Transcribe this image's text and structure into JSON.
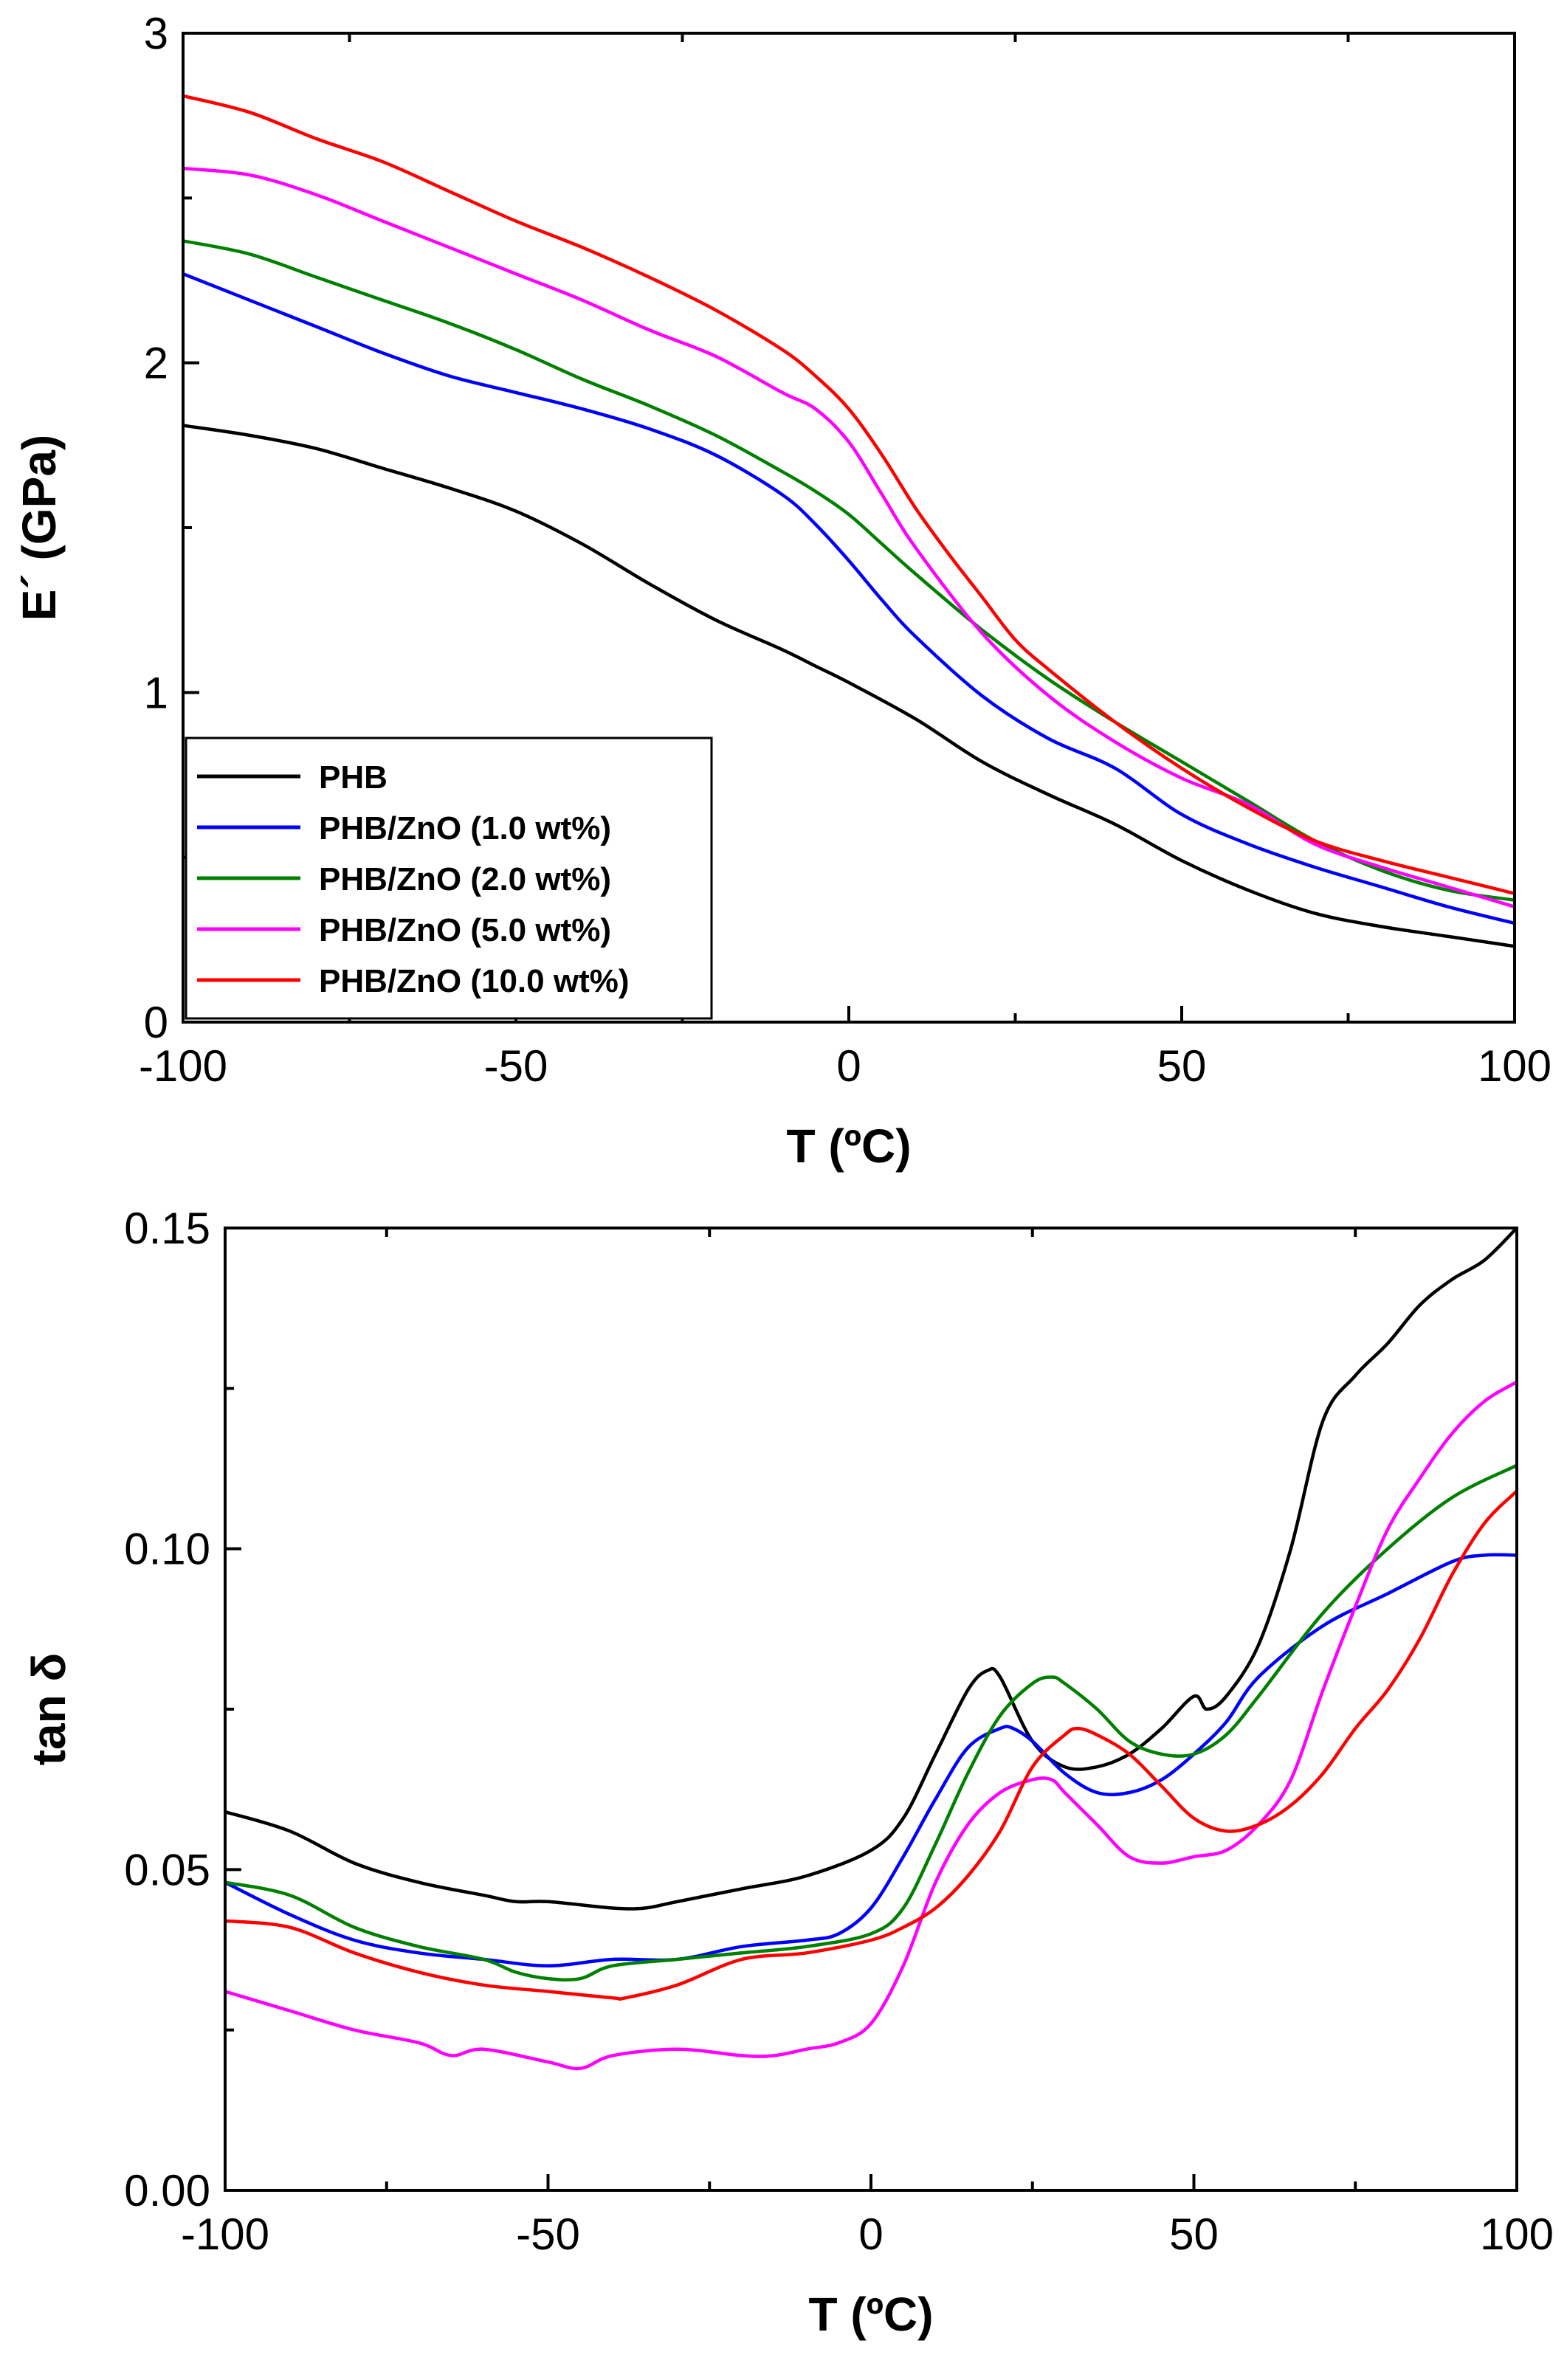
{
  "chart_data": [
    {
      "type": "line",
      "title": "",
      "xlabel": "T (ºC)",
      "ylabel": "E´ (GPa)",
      "xlim": [
        -100,
        100
      ],
      "ylim": [
        0,
        3
      ],
      "xticks": [
        -100,
        -50,
        0,
        50,
        100
      ],
      "xtick_labels": [
        "-100",
        "-50",
        "0",
        "50",
        "100"
      ],
      "yticks": [
        0,
        1,
        2,
        3
      ],
      "ytick_labels": [
        "0",
        "1",
        "2",
        "3"
      ],
      "grid": false,
      "legend_position": "bottom-left",
      "series": [
        {
          "name": "PHB",
          "color": "#000000",
          "x": [
            -100,
            -90,
            -80,
            -70,
            -60,
            -50,
            -40,
            -30,
            -20,
            -10,
            -5,
            0,
            10,
            20,
            30,
            40,
            50,
            60,
            70,
            80,
            90,
            100
          ],
          "y": [
            1.81,
            1.78,
            1.74,
            1.68,
            1.62,
            1.55,
            1.45,
            1.33,
            1.22,
            1.13,
            1.08,
            1.03,
            0.92,
            0.79,
            0.69,
            0.6,
            0.49,
            0.4,
            0.33,
            0.29,
            0.26,
            0.23
          ]
        },
        {
          "name": "PHB/ZnO (1.0 wt%)",
          "color": "#0000ff",
          "x": [
            -100,
            -90,
            -80,
            -70,
            -60,
            -50,
            -40,
            -30,
            -20,
            -10,
            -5,
            0,
            5,
            10,
            20,
            30,
            40,
            50,
            60,
            70,
            80,
            90,
            100
          ],
          "y": [
            2.27,
            2.19,
            2.11,
            2.03,
            1.96,
            1.91,
            1.86,
            1.8,
            1.72,
            1.6,
            1.51,
            1.4,
            1.28,
            1.17,
            0.99,
            0.86,
            0.77,
            0.63,
            0.54,
            0.47,
            0.41,
            0.35,
            0.3
          ]
        },
        {
          "name": "PHB/ZnO (2.0 wt%)",
          "color": "#008000",
          "x": [
            -100,
            -90,
            -80,
            -70,
            -60,
            -50,
            -40,
            -30,
            -20,
            -10,
            -5,
            0,
            5,
            10,
            20,
            30,
            40,
            50,
            60,
            70,
            80,
            90,
            100
          ],
          "y": [
            2.37,
            2.33,
            2.26,
            2.19,
            2.12,
            2.04,
            1.95,
            1.87,
            1.78,
            1.67,
            1.61,
            1.54,
            1.45,
            1.36,
            1.19,
            1.04,
            0.91,
            0.79,
            0.67,
            0.55,
            0.46,
            0.4,
            0.37
          ]
        },
        {
          "name": "PHB/ZnO (5.0 wt%)",
          "color": "#ff00ff",
          "x": [
            -100,
            -90,
            -80,
            -70,
            -60,
            -50,
            -40,
            -30,
            -20,
            -10,
            -5,
            0,
            5,
            10,
            20,
            30,
            40,
            50,
            60,
            70,
            80,
            90,
            100
          ],
          "y": [
            2.59,
            2.57,
            2.51,
            2.43,
            2.35,
            2.27,
            2.19,
            2.1,
            2.02,
            1.91,
            1.86,
            1.76,
            1.6,
            1.44,
            1.18,
            0.99,
            0.85,
            0.74,
            0.66,
            0.54,
            0.47,
            0.41,
            0.35
          ]
        },
        {
          "name": "PHB/ZnO (10.0 wt%)",
          "color": "#ff0000",
          "x": [
            -100,
            -90,
            -80,
            -70,
            -60,
            -50,
            -40,
            -30,
            -20,
            -10,
            -5,
            0,
            5,
            10,
            15,
            20,
            25,
            30,
            40,
            50,
            60,
            70,
            80,
            90,
            100
          ],
          "y": [
            2.81,
            2.76,
            2.68,
            2.61,
            2.52,
            2.43,
            2.35,
            2.26,
            2.16,
            2.04,
            1.96,
            1.86,
            1.72,
            1.56,
            1.42,
            1.29,
            1.16,
            1.07,
            0.91,
            0.77,
            0.65,
            0.55,
            0.49,
            0.44,
            0.39
          ]
        }
      ],
      "legend": {
        "entries": [
          "PHB",
          "PHB/ZnO (1.0 wt%)",
          "PHB/ZnO (2.0 wt%)",
          "PHB/ZnO (5.0 wt%)",
          "PHB/ZnO (10.0 wt%)"
        ]
      }
    },
    {
      "type": "line",
      "title": "",
      "xlabel": "T (ºC)",
      "ylabel": "tan δ",
      "xlim": [
        -100,
        100
      ],
      "ylim": [
        0,
        0.15
      ],
      "xticks": [
        -100,
        -50,
        0,
        50,
        100
      ],
      "xtick_labels": [
        "-100",
        "-50",
        "0",
        "50",
        "100"
      ],
      "yticks": [
        0,
        0.05,
        0.1,
        0.15
      ],
      "ytick_labels": [
        "0.00",
        "0.05",
        "0.10",
        "0.15"
      ],
      "grid": false,
      "series": [
        {
          "name": "PHB",
          "color": "#000000",
          "x": [
            -100,
            -90,
            -80,
            -70,
            -60,
            -55,
            -50,
            -40,
            -35,
            -30,
            -20,
            -10,
            0,
            5,
            10,
            15,
            18,
            20,
            25,
            30,
            35,
            40,
            45,
            50,
            52,
            55,
            60,
            65,
            70,
            75,
            80,
            85,
            90,
            95,
            100
          ],
          "y": [
            0.059,
            0.056,
            0.051,
            0.048,
            0.046,
            0.045,
            0.045,
            0.044,
            0.044,
            0.045,
            0.047,
            0.049,
            0.053,
            0.058,
            0.068,
            0.078,
            0.081,
            0.08,
            0.07,
            0.066,
            0.066,
            0.068,
            0.072,
            0.077,
            0.075,
            0.077,
            0.085,
            0.1,
            0.12,
            0.127,
            0.132,
            0.138,
            0.142,
            0.145,
            0.15
          ]
        },
        {
          "name": "PHB/ZnO (1.0 wt%)",
          "color": "#0000ff",
          "x": [
            -100,
            -90,
            -80,
            -70,
            -60,
            -50,
            -40,
            -30,
            -20,
            -10,
            -5,
            0,
            5,
            10,
            15,
            20,
            22,
            25,
            30,
            35,
            40,
            45,
            50,
            55,
            60,
            70,
            80,
            90,
            95,
            100
          ],
          "y": [
            0.048,
            0.043,
            0.039,
            0.037,
            0.036,
            0.035,
            0.036,
            0.036,
            0.038,
            0.039,
            0.04,
            0.044,
            0.052,
            0.061,
            0.069,
            0.072,
            0.072,
            0.07,
            0.065,
            0.062,
            0.062,
            0.064,
            0.068,
            0.073,
            0.08,
            0.088,
            0.093,
            0.098,
            0.099,
            0.099
          ]
        },
        {
          "name": "PHB/ZnO (2.0 wt%)",
          "color": "#008000",
          "x": [
            -100,
            -90,
            -80,
            -70,
            -60,
            -55,
            -50,
            -45,
            -40,
            -30,
            -20,
            -10,
            0,
            5,
            10,
            15,
            20,
            25,
            28,
            30,
            35,
            40,
            45,
            50,
            55,
            60,
            70,
            80,
            90,
            100
          ],
          "y": [
            0.048,
            0.046,
            0.041,
            0.038,
            0.036,
            0.034,
            0.033,
            0.033,
            0.035,
            0.036,
            0.037,
            0.038,
            0.04,
            0.044,
            0.054,
            0.065,
            0.074,
            0.079,
            0.08,
            0.079,
            0.075,
            0.07,
            0.068,
            0.068,
            0.071,
            0.077,
            0.09,
            0.1,
            0.108,
            0.113
          ]
        },
        {
          "name": "PHB/ZnO (5.0 wt%)",
          "color": "#ff00ff",
          "x": [
            -100,
            -90,
            -80,
            -70,
            -65,
            -60,
            -50,
            -45,
            -40,
            -30,
            -20,
            -15,
            -10,
            -5,
            0,
            5,
            10,
            15,
            20,
            25,
            28,
            30,
            35,
            40,
            45,
            50,
            55,
            60,
            65,
            70,
            75,
            80,
            85,
            90,
            95,
            100
          ],
          "y": [
            0.031,
            0.028,
            0.025,
            0.023,
            0.021,
            0.022,
            0.02,
            0.019,
            0.021,
            0.022,
            0.021,
            0.021,
            0.022,
            0.023,
            0.026,
            0.035,
            0.048,
            0.057,
            0.062,
            0.064,
            0.064,
            0.062,
            0.057,
            0.052,
            0.051,
            0.052,
            0.053,
            0.057,
            0.064,
            0.078,
            0.091,
            0.103,
            0.111,
            0.118,
            0.123,
            0.126
          ]
        },
        {
          "name": "PHB/ZnO (10.0 wt%)",
          "color": "#ff0000",
          "x": [
            -100,
            -90,
            -80,
            -70,
            -60,
            -50,
            -40,
            -38,
            -30,
            -20,
            -10,
            0,
            5,
            10,
            15,
            20,
            25,
            30,
            32,
            35,
            40,
            45,
            50,
            55,
            60,
            65,
            70,
            75,
            80,
            85,
            90,
            95,
            100
          ],
          "y": [
            0.042,
            0.041,
            0.037,
            0.034,
            0.032,
            0.031,
            0.03,
            0.03,
            0.032,
            0.036,
            0.037,
            0.039,
            0.041,
            0.044,
            0.049,
            0.056,
            0.066,
            0.071,
            0.072,
            0.071,
            0.068,
            0.063,
            0.058,
            0.056,
            0.057,
            0.06,
            0.065,
            0.072,
            0.078,
            0.086,
            0.096,
            0.104,
            0.109
          ]
        }
      ]
    }
  ]
}
